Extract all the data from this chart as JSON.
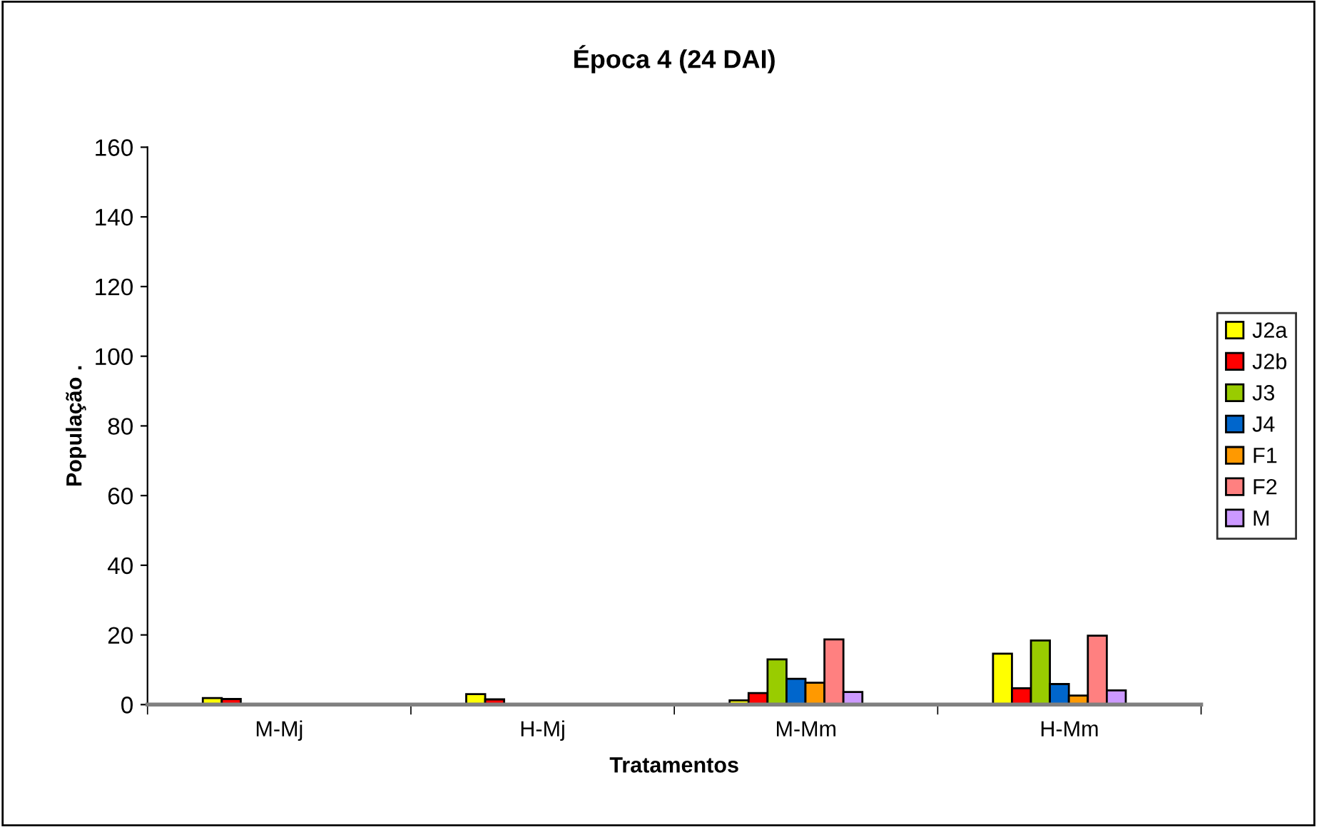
{
  "chart_data": {
    "type": "bar",
    "title": "Época 4 (24 DAI)",
    "xlabel": "Tratamentos",
    "ylabel": "População .",
    "categories": [
      "M-Mj",
      "H-Mj",
      "M-Mm",
      "H-Mm"
    ],
    "series": [
      {
        "name": "J2a",
        "color": "#ffff00",
        "values": [
          1.9,
          3.0,
          1.2,
          14.6
        ]
      },
      {
        "name": "J2b",
        "color": "#ff0000",
        "values": [
          1.6,
          1.5,
          3.3,
          4.7
        ]
      },
      {
        "name": "J3",
        "color": "#99cc00",
        "values": [
          null,
          null,
          13,
          18.4
        ]
      },
      {
        "name": "J4",
        "color": "#0066cc",
        "values": [
          null,
          null,
          7.4,
          5.9
        ]
      },
      {
        "name": "F1",
        "color": "#ff9900",
        "values": [
          null,
          null,
          6.3,
          2.6
        ]
      },
      {
        "name": "F2",
        "color": "#ff8080",
        "values": [
          null,
          null,
          18.7,
          19.8
        ]
      },
      {
        "name": "M",
        "color": "#cc99ff",
        "values": [
          null,
          null,
          3.6,
          4.1
        ]
      }
    ],
    "ylim": [
      0,
      160
    ],
    "yticks": [
      0,
      20,
      40,
      60,
      80,
      100,
      120,
      140,
      160
    ],
    "grid": false,
    "legend": "right"
  }
}
